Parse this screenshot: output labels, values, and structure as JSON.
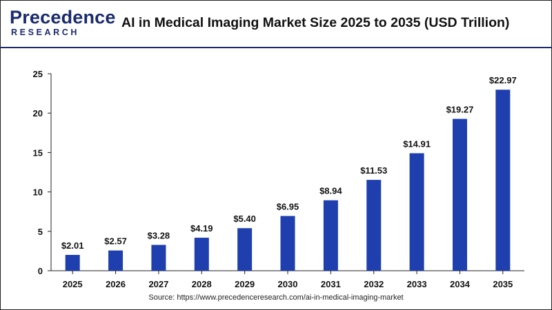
{
  "header": {
    "logo_main": "Precedence",
    "logo_sub": "RESEARCH",
    "title": "AI in Medical Imaging Market Size 2025 to 2035 (USD Trillion)"
  },
  "source": "Source: https://www.precedenceresearch.com/ai-in-medical-imaging-market",
  "colors": {
    "bar": "#1f3fae",
    "brand": "#1a2a6c",
    "axis": "#222222"
  },
  "chart_data": {
    "type": "bar",
    "title": "AI in Medical Imaging Market Size 2025 to 2035 (USD Trillion)",
    "categories": [
      "2025",
      "2026",
      "2027",
      "2028",
      "2029",
      "2030",
      "2031",
      "2032",
      "2033",
      "2034",
      "2035"
    ],
    "values": [
      2.01,
      2.57,
      3.28,
      4.19,
      5.4,
      6.95,
      8.94,
      11.53,
      14.91,
      19.27,
      22.97
    ],
    "data_labels": [
      "$2.01",
      "$2.57",
      "$3.28",
      "$4.19",
      "$5.40",
      "$6.95",
      "$8.94",
      "$11.53",
      "$14.91",
      "$19.27",
      "$22.97"
    ],
    "y_ticks": [
      0,
      5,
      10,
      15,
      20,
      25
    ],
    "ylim": [
      0,
      25
    ],
    "xlabel": "",
    "ylabel": "",
    "grid": false,
    "legend": "none"
  }
}
